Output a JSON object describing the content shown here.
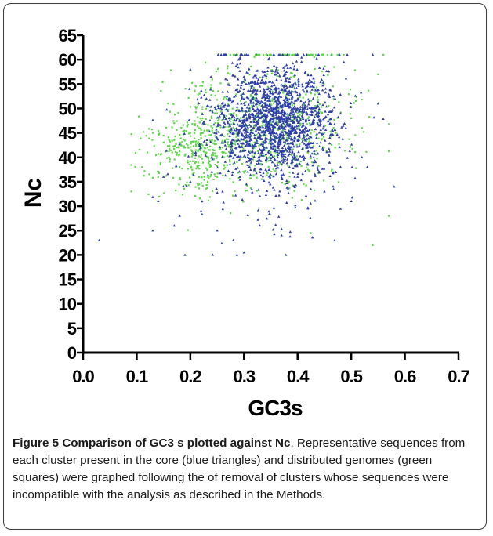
{
  "chart_data": {
    "type": "scatter",
    "xlabel": "GC3s",
    "ylabel": "Nc",
    "xlim": [
      0.0,
      0.7
    ],
    "ylim": [
      0,
      65
    ],
    "x_ticks": [
      "0.0",
      "0.1",
      "0.2",
      "0.3",
      "0.4",
      "0.5",
      "0.6",
      "0.7"
    ],
    "y_ticks": [
      "0",
      "5",
      "10",
      "15",
      "20",
      "25",
      "30",
      "35",
      "40",
      "45",
      "50",
      "55",
      "60",
      "65"
    ],
    "grid": false,
    "series": [
      {
        "marker": "triangle",
        "color": "#2e3ea8",
        "values": [
          [
            0.03,
            23
          ],
          [
            0.13,
            25
          ],
          [
            0.14,
            31
          ],
          [
            0.15,
            36
          ],
          [
            0.17,
            26
          ],
          [
            0.18,
            28
          ],
          [
            0.19,
            20
          ],
          [
            0.2,
            58
          ],
          [
            0.2,
            35
          ],
          [
            0.21,
            41
          ],
          [
            0.22,
            29
          ],
          [
            0.23,
            52
          ],
          [
            0.24,
            37
          ],
          [
            0.25,
            25
          ],
          [
            0.26,
            33
          ],
          [
            0.27,
            47
          ],
          [
            0.28,
            23
          ],
          [
            0.29,
            60
          ],
          [
            0.29,
            45
          ],
          [
            0.3,
            20.5
          ],
          [
            0.3,
            40
          ],
          [
            0.31,
            50
          ],
          [
            0.31,
            38
          ],
          [
            0.32,
            55
          ],
          [
            0.32,
            44
          ],
          [
            0.33,
            32
          ],
          [
            0.33,
            48
          ],
          [
            0.34,
            52
          ],
          [
            0.34,
            46
          ],
          [
            0.35,
            42
          ],
          [
            0.35,
            50
          ],
          [
            0.36,
            58
          ],
          [
            0.36,
            47
          ],
          [
            0.37,
            24
          ],
          [
            0.37,
            49
          ],
          [
            0.38,
            45
          ],
          [
            0.38,
            53
          ],
          [
            0.39,
            41
          ],
          [
            0.4,
            50
          ],
          [
            0.4,
            36
          ],
          [
            0.41,
            47
          ],
          [
            0.42,
            55
          ],
          [
            0.43,
            40
          ],
          [
            0.44,
            49
          ],
          [
            0.45,
            33
          ],
          [
            0.46,
            44
          ],
          [
            0.47,
            52
          ],
          [
            0.48,
            38
          ],
          [
            0.49,
            46
          ],
          [
            0.5,
            31
          ],
          [
            0.52,
            40
          ],
          [
            0.53,
            38
          ],
          [
            0.54,
            61
          ],
          [
            0.55,
            51
          ],
          [
            0.58,
            34
          ]
        ]
      },
      {
        "marker": "square",
        "color": "#5fd64a",
        "values": [
          [
            0.09,
            33
          ],
          [
            0.11,
            38
          ],
          [
            0.12,
            41
          ],
          [
            0.13,
            45
          ],
          [
            0.14,
            36
          ],
          [
            0.15,
            43
          ],
          [
            0.16,
            40
          ],
          [
            0.17,
            47
          ],
          [
            0.18,
            38
          ],
          [
            0.19,
            42
          ],
          [
            0.2,
            45
          ],
          [
            0.21,
            39
          ],
          [
            0.22,
            44
          ],
          [
            0.23,
            41
          ],
          [
            0.24,
            48
          ],
          [
            0.25,
            36
          ],
          [
            0.26,
            42
          ],
          [
            0.27,
            51
          ],
          [
            0.28,
            46
          ],
          [
            0.3,
            40
          ],
          [
            0.32,
            52
          ],
          [
            0.35,
            47
          ],
          [
            0.38,
            44
          ],
          [
            0.4,
            49
          ],
          [
            0.42,
            61
          ],
          [
            0.45,
            45
          ],
          [
            0.47,
            42
          ],
          [
            0.5,
            48
          ],
          [
            0.52,
            46
          ],
          [
            0.54,
            22
          ],
          [
            0.55,
            57
          ],
          [
            0.56,
            61
          ],
          [
            0.57,
            28
          ]
        ]
      }
    ]
  },
  "caption": {
    "label": "Figure 5",
    "title": "Comparison of GC3 s plotted against Nc",
    "body": ". Representative sequences from each cluster present in the core (blue triangles) and distributed genomes (green squares) were graphed following the of removal of clusters whose sequences were incompatible with the analysis as described in the Methods."
  }
}
